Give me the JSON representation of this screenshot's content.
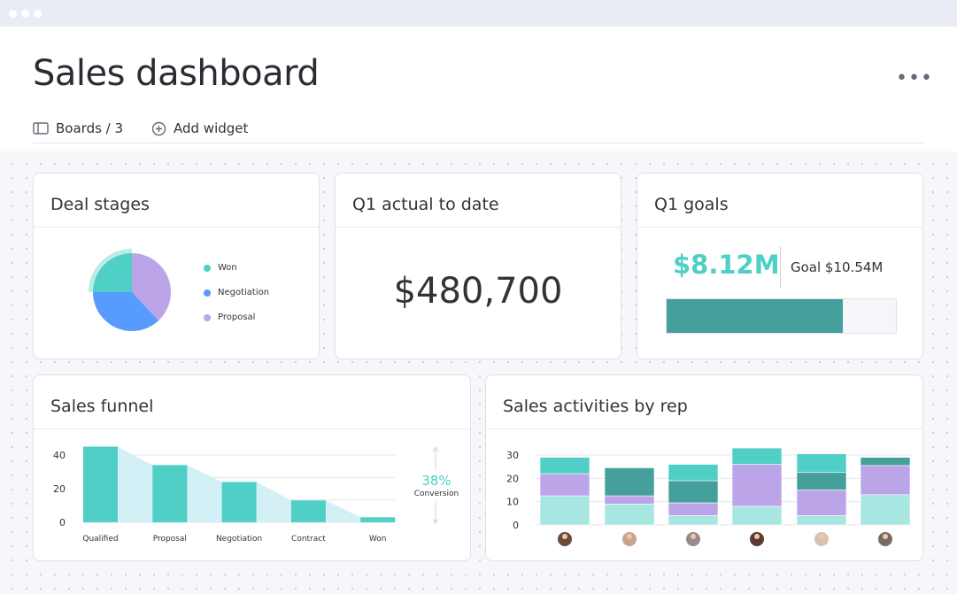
{
  "window": {
    "title_bar_dots": 3
  },
  "header": {
    "title": "Sales dashboard",
    "more_icon": "ellipsis-icon",
    "boards_label": "Boards / 3",
    "add_widget_label": "Add widget"
  },
  "colors": {
    "teal": "#4fcfc6",
    "dark_teal": "#45a09b",
    "purple": "#bba5e8",
    "light_teal": "#a8e6e1",
    "blue": "#579bfc",
    "funnel_fill": "#d4f0f7"
  },
  "deal_stages": {
    "title": "Deal stages",
    "chart_data": {
      "type": "pie",
      "slices": [
        {
          "name": "Won",
          "value": 25,
          "color": "#4fcfc6"
        },
        {
          "name": "Proposal",
          "value": 38,
          "color": "#bba5e8"
        },
        {
          "name": "Negotiation",
          "value": 37,
          "color": "#579bfc"
        }
      ],
      "legend": [
        "Won",
        "Negotiation",
        "Proposal"
      ],
      "legend_placement": "right"
    }
  },
  "q1_actual": {
    "title": "Q1 actual to date",
    "value": "$480,700"
  },
  "q1_goals": {
    "title": "Q1 goals",
    "value": "$8.12M",
    "goal": "Goal $10.54M",
    "progress": 0.77
  },
  "sales_funnel": {
    "title": "Sales funnel",
    "conversion": "38%",
    "conversion_label": "Conversion",
    "chart_data": {
      "type": "bar",
      "categories": [
        "Qualified",
        "Proposal",
        "Negotiation",
        "Contract",
        "Won"
      ],
      "values": [
        45,
        34,
        24,
        13,
        3
      ],
      "yticks": [
        "0",
        "20",
        "40"
      ],
      "ylim": [
        0,
        40
      ],
      "grid": true
    }
  },
  "sales_activities": {
    "title": "Sales activities by rep",
    "chart_data": {
      "type": "bar",
      "stacked": true,
      "categories": [
        "rep-1",
        "rep-2",
        "rep-3",
        "rep-4",
        "rep-5",
        "rep-6"
      ],
      "series": [
        {
          "color": "#a8e6e1",
          "values": [
            12.5,
            9,
            4,
            8,
            4,
            13
          ]
        },
        {
          "color": "#bba5e8",
          "values": [
            9.5,
            3.5,
            5.5,
            18,
            11,
            12.5
          ]
        },
        {
          "color": "#45a09b",
          "values": [
            0,
            12,
            9.5,
            0,
            7.5,
            3.5
          ]
        },
        {
          "color": "#4fcfc6",
          "values": [
            7,
            0,
            7,
            7,
            8,
            0
          ]
        }
      ],
      "yticks": [
        "0",
        "10",
        "20",
        "30"
      ],
      "ylim": [
        0,
        30
      ],
      "grid": true,
      "x_axis": "avatar images"
    }
  }
}
